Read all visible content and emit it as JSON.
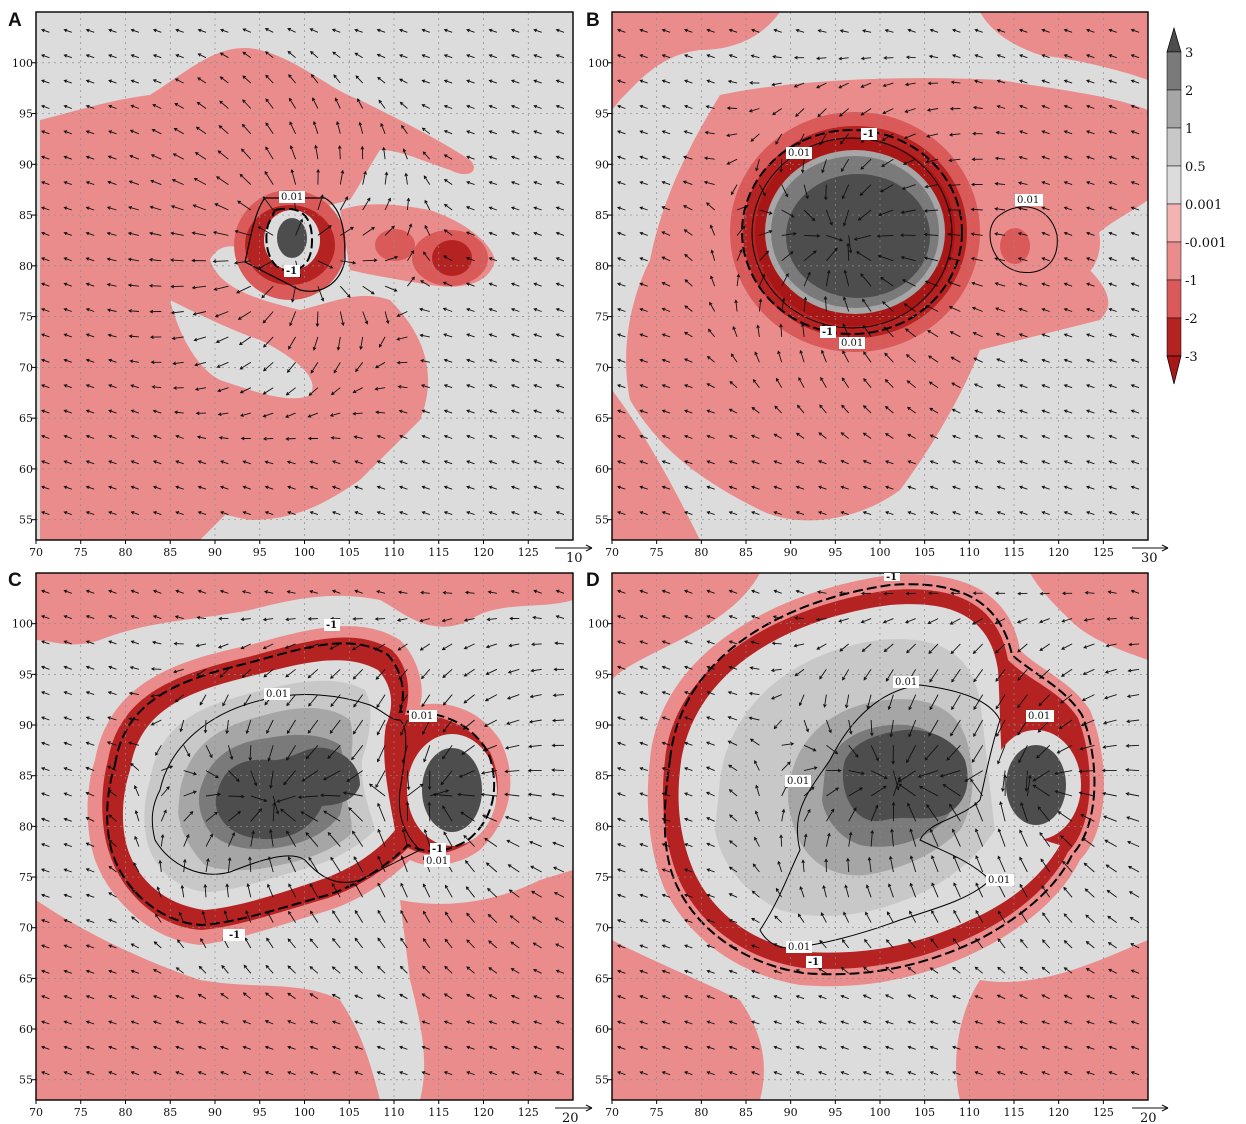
{
  "colors": {
    "c_gt2": "#4d4d4d",
    "c_1_2": "#7a7a7a",
    "c_05_1": "#a6a6a6",
    "c_001_05": "#c8c8c8",
    "c_0001_001": "#dcdcdc",
    "c_m0001_0001": "#f3b3b3",
    "c_m1_m0001": "#ea8c8c",
    "c_m2_m1": "#da5a5a",
    "c_m3_m2": "#b52222",
    "c_ltm3": "#a81616",
    "background": "#dcdcdc",
    "contour": "#000000",
    "arrow": "#111111",
    "grid": "#8a8a8a"
  },
  "colorbar": {
    "levels": [
      "3",
      "2",
      "1",
      "0.5",
      "0.001",
      "-0.001",
      "-1",
      "-2",
      "-3"
    ],
    "colors": [
      "#4d4d4d",
      "#7a7a7a",
      "#a6a6a6",
      "#c8c8c8",
      "#dcdcdc",
      "#f3b3b3",
      "#ea8c8c",
      "#da5a5a",
      "#b52222",
      "#a81616"
    ]
  },
  "chart_data": [
    {
      "type": "heatmap",
      "panel": "A",
      "x_ticks": [
        "70",
        "75",
        "80",
        "85",
        "90",
        "95",
        "100",
        "105",
        "110",
        "115",
        "120",
        "125"
      ],
      "y_ticks": [
        "100",
        "95",
        "90",
        "85",
        "80",
        "75",
        "70",
        "65",
        "60",
        "55"
      ],
      "xlim": [
        70,
        130
      ],
      "ylim": [
        53,
        105
      ],
      "vector_reference": "10",
      "contour_labels": [
        "0.01",
        "-1"
      ],
      "features": [
        {
          "x": 98,
          "y": 82,
          "value": 2
        },
        {
          "x": 98,
          "y": 82,
          "value": -2
        },
        {
          "x": 116,
          "y": 80,
          "value": -2
        },
        {
          "x": 108,
          "y": 81,
          "value": -1
        }
      ]
    },
    {
      "type": "heatmap",
      "panel": "B",
      "x_ticks": [
        "70",
        "75",
        "80",
        "85",
        "90",
        "95",
        "100",
        "105",
        "110",
        "115",
        "120",
        "125"
      ],
      "y_ticks": [
        "100",
        "95",
        "90",
        "85",
        "80",
        "75",
        "70",
        "65",
        "60",
        "55"
      ],
      "xlim": [
        70,
        130
      ],
      "ylim": [
        53,
        105
      ],
      "vector_reference": "30",
      "contour_labels": [
        "-1",
        "0.01",
        "-1",
        "0.01",
        "0.01"
      ],
      "features": [
        {
          "x": 97,
          "y": 82,
          "value": 3
        },
        {
          "x": 97,
          "y": 81,
          "value": -3
        },
        {
          "x": 115,
          "y": 81,
          "value": -2
        }
      ]
    },
    {
      "type": "heatmap",
      "panel": "C",
      "x_ticks": [
        "70",
        "75",
        "80",
        "85",
        "90",
        "95",
        "100",
        "105",
        "110",
        "115",
        "120",
        "125"
      ],
      "y_ticks": [
        "100",
        "95",
        "90",
        "85",
        "80",
        "75",
        "70",
        "65",
        "60",
        "55"
      ],
      "xlim": [
        70,
        130
      ],
      "ylim": [
        53,
        105
      ],
      "vector_reference": "20",
      "contour_labels": [
        "-1",
        "0.01",
        "0.01",
        "-1",
        "0.01",
        "-1"
      ],
      "features": [
        {
          "x": 97,
          "y": 82,
          "value": 3
        },
        {
          "x": 116,
          "y": 83,
          "value": 3
        },
        {
          "x": 98,
          "y": 82,
          "value": -3
        }
      ]
    },
    {
      "type": "heatmap",
      "panel": "D",
      "x_ticks": [
        "70",
        "75",
        "80",
        "85",
        "90",
        "95",
        "100",
        "105",
        "110",
        "115",
        "120",
        "125"
      ],
      "y_ticks": [
        "100",
        "95",
        "90",
        "85",
        "80",
        "75",
        "70",
        "65",
        "60",
        "55"
      ],
      "xlim": [
        70,
        130
      ],
      "ylim": [
        53,
        105
      ],
      "vector_reference": "20",
      "contour_labels": [
        "-1",
        "0.01",
        "0.01",
        "0.01",
        "0.01",
        "0.01",
        "-1"
      ],
      "features": [
        {
          "x": 102,
          "y": 85,
          "value": 3
        },
        {
          "x": 118,
          "y": 84,
          "value": 3
        },
        {
          "x": 100,
          "y": 83,
          "value": -3
        }
      ]
    }
  ]
}
